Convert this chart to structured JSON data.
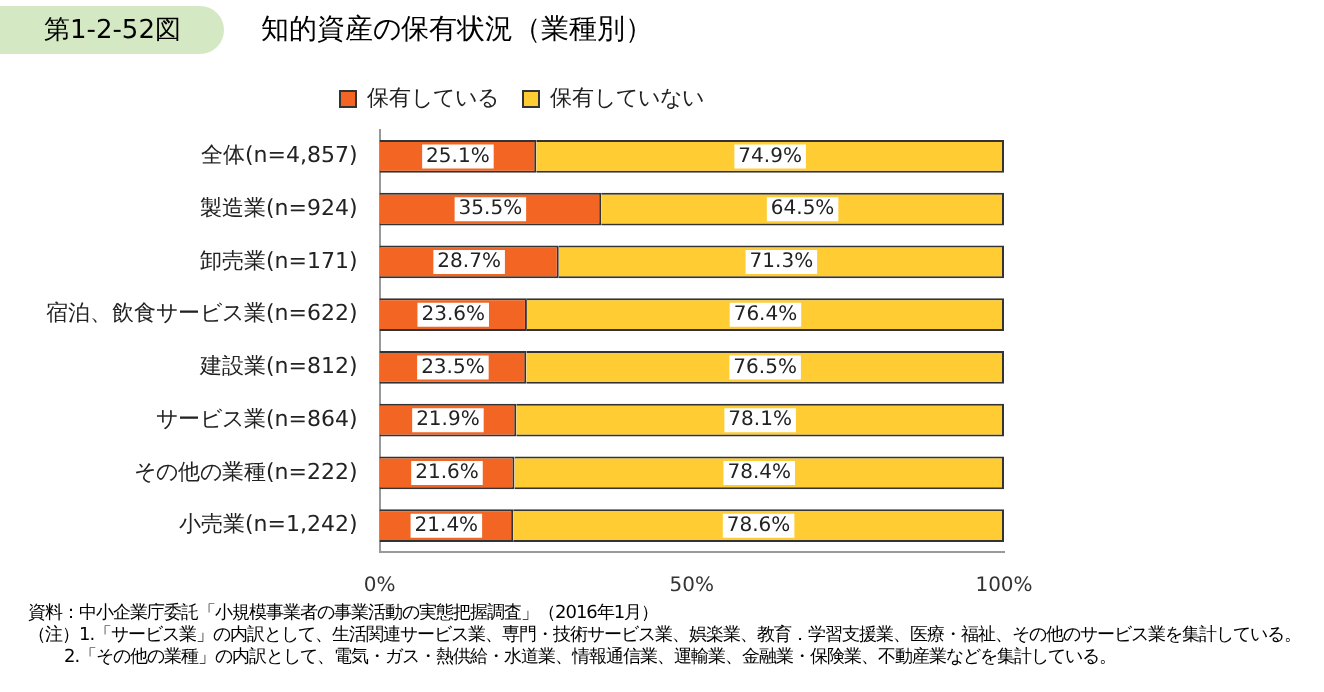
{
  "chart_data": {
    "type": "bar",
    "orientation": "horizontal",
    "stacked": true,
    "title": "知的資産の保有状況（業種別）",
    "subtitle": "第1-2-52図",
    "categories": [
      "全体(n=4,857)",
      "製造業(n=924)",
      "卸売業(n=171)",
      "宿泊、飲食サービス業(n=622)",
      "建設業(n=812)",
      "サービス業(n=864)",
      "その他の業種(n=222)",
      "小売業(n=1,242)"
    ],
    "series": [
      {
        "name": "保有している",
        "color": "#f26522",
        "values": [
          25.1,
          35.5,
          28.7,
          23.6,
          23.5,
          21.9,
          21.6,
          21.4
        ],
        "value_labels": [
          "25.1%",
          "35.5%",
          "28.7%",
          "23.6%",
          "23.5%",
          "21.9%",
          "21.6%",
          "21.4%"
        ]
      },
      {
        "name": "保有していない",
        "color": "#ffcc33",
        "values": [
          74.9,
          64.5,
          71.3,
          76.4,
          76.5,
          78.1,
          78.4,
          78.6
        ],
        "value_labels": [
          "74.9%",
          "64.5%",
          "71.3%",
          "76.4%",
          "76.5%",
          "78.1%",
          "78.4%",
          "78.6%"
        ]
      }
    ],
    "xlim": [
      0,
      100
    ],
    "xticks": [
      {
        "value": 0,
        "label": "0%"
      },
      {
        "value": 50,
        "label": "50%"
      },
      {
        "value": 100,
        "label": "100%"
      }
    ],
    "grid": false,
    "legend": "top",
    "annotations": [
      "資料：中小企業庁委託「小規模事業者の事業活動の実態把握調査」（2016年1月）",
      "（注）1.「サービス業」の内訳として、生活関連サービス業、専門・技術サービス業、娯楽業、教育．学習支援業、医療・福祉、その他のサービス業を集計している。",
      "2.「その他の業種」の内訳として、電気・ガス・熱供給・水道業、情報通信業、運輸業、金融業・保険業、不動産業などを集計している。"
    ]
  }
}
